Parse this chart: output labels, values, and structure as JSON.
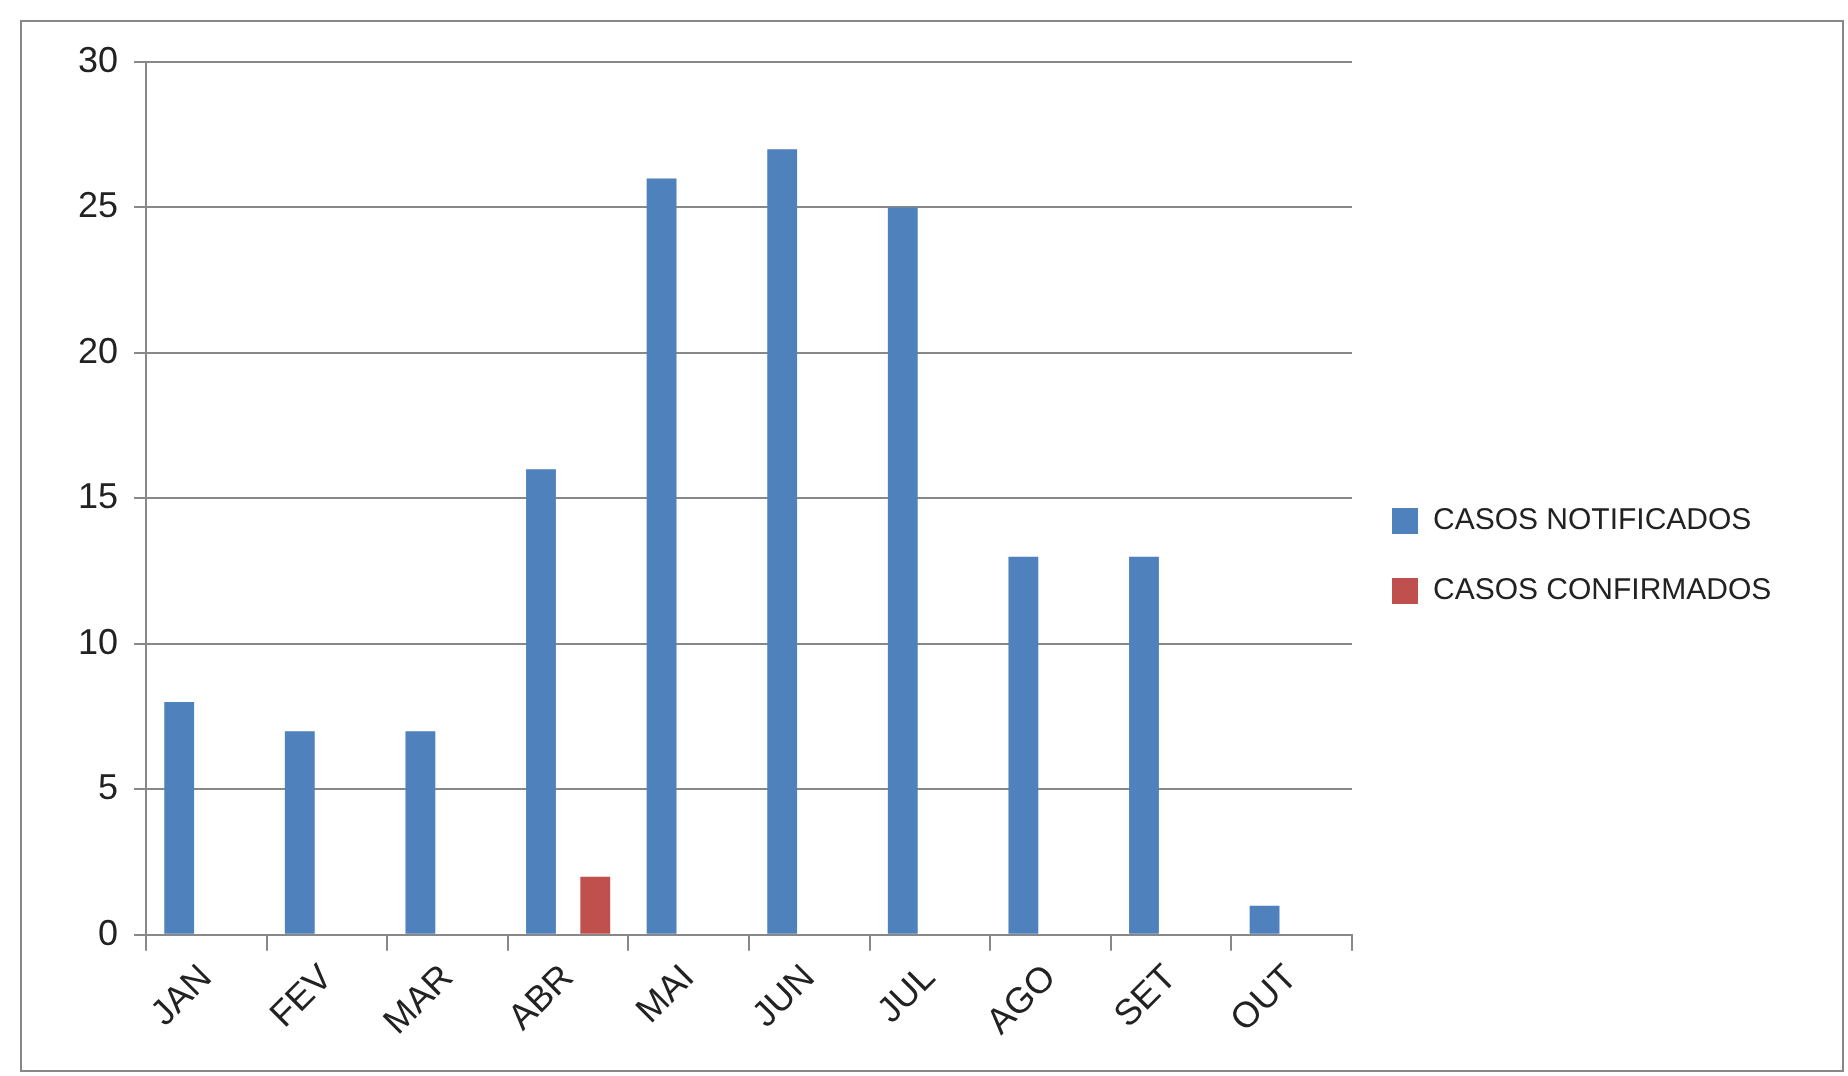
{
  "chart_data": {
    "type": "bar",
    "categories": [
      "JAN",
      "FEV",
      "MAR",
      "ABR",
      "MAI",
      "JUN",
      "JUL",
      "AGO",
      "SET",
      "OUT"
    ],
    "series": [
      {
        "name": "CASOS NOTIFICADOS",
        "color": "#4f81bd",
        "values": [
          8,
          7,
          7,
          16,
          26,
          27,
          25,
          13,
          13,
          1
        ]
      },
      {
        "name": "CASOS CONFIRMADOS",
        "color": "#c0504d",
        "values": [
          0,
          0,
          0,
          2,
          0,
          0,
          0,
          0,
          0,
          0
        ]
      }
    ],
    "ylim": [
      0,
      30
    ],
    "yticks": [
      0,
      5,
      10,
      15,
      20,
      25,
      30
    ],
    "grid": "y",
    "legend": "right"
  }
}
